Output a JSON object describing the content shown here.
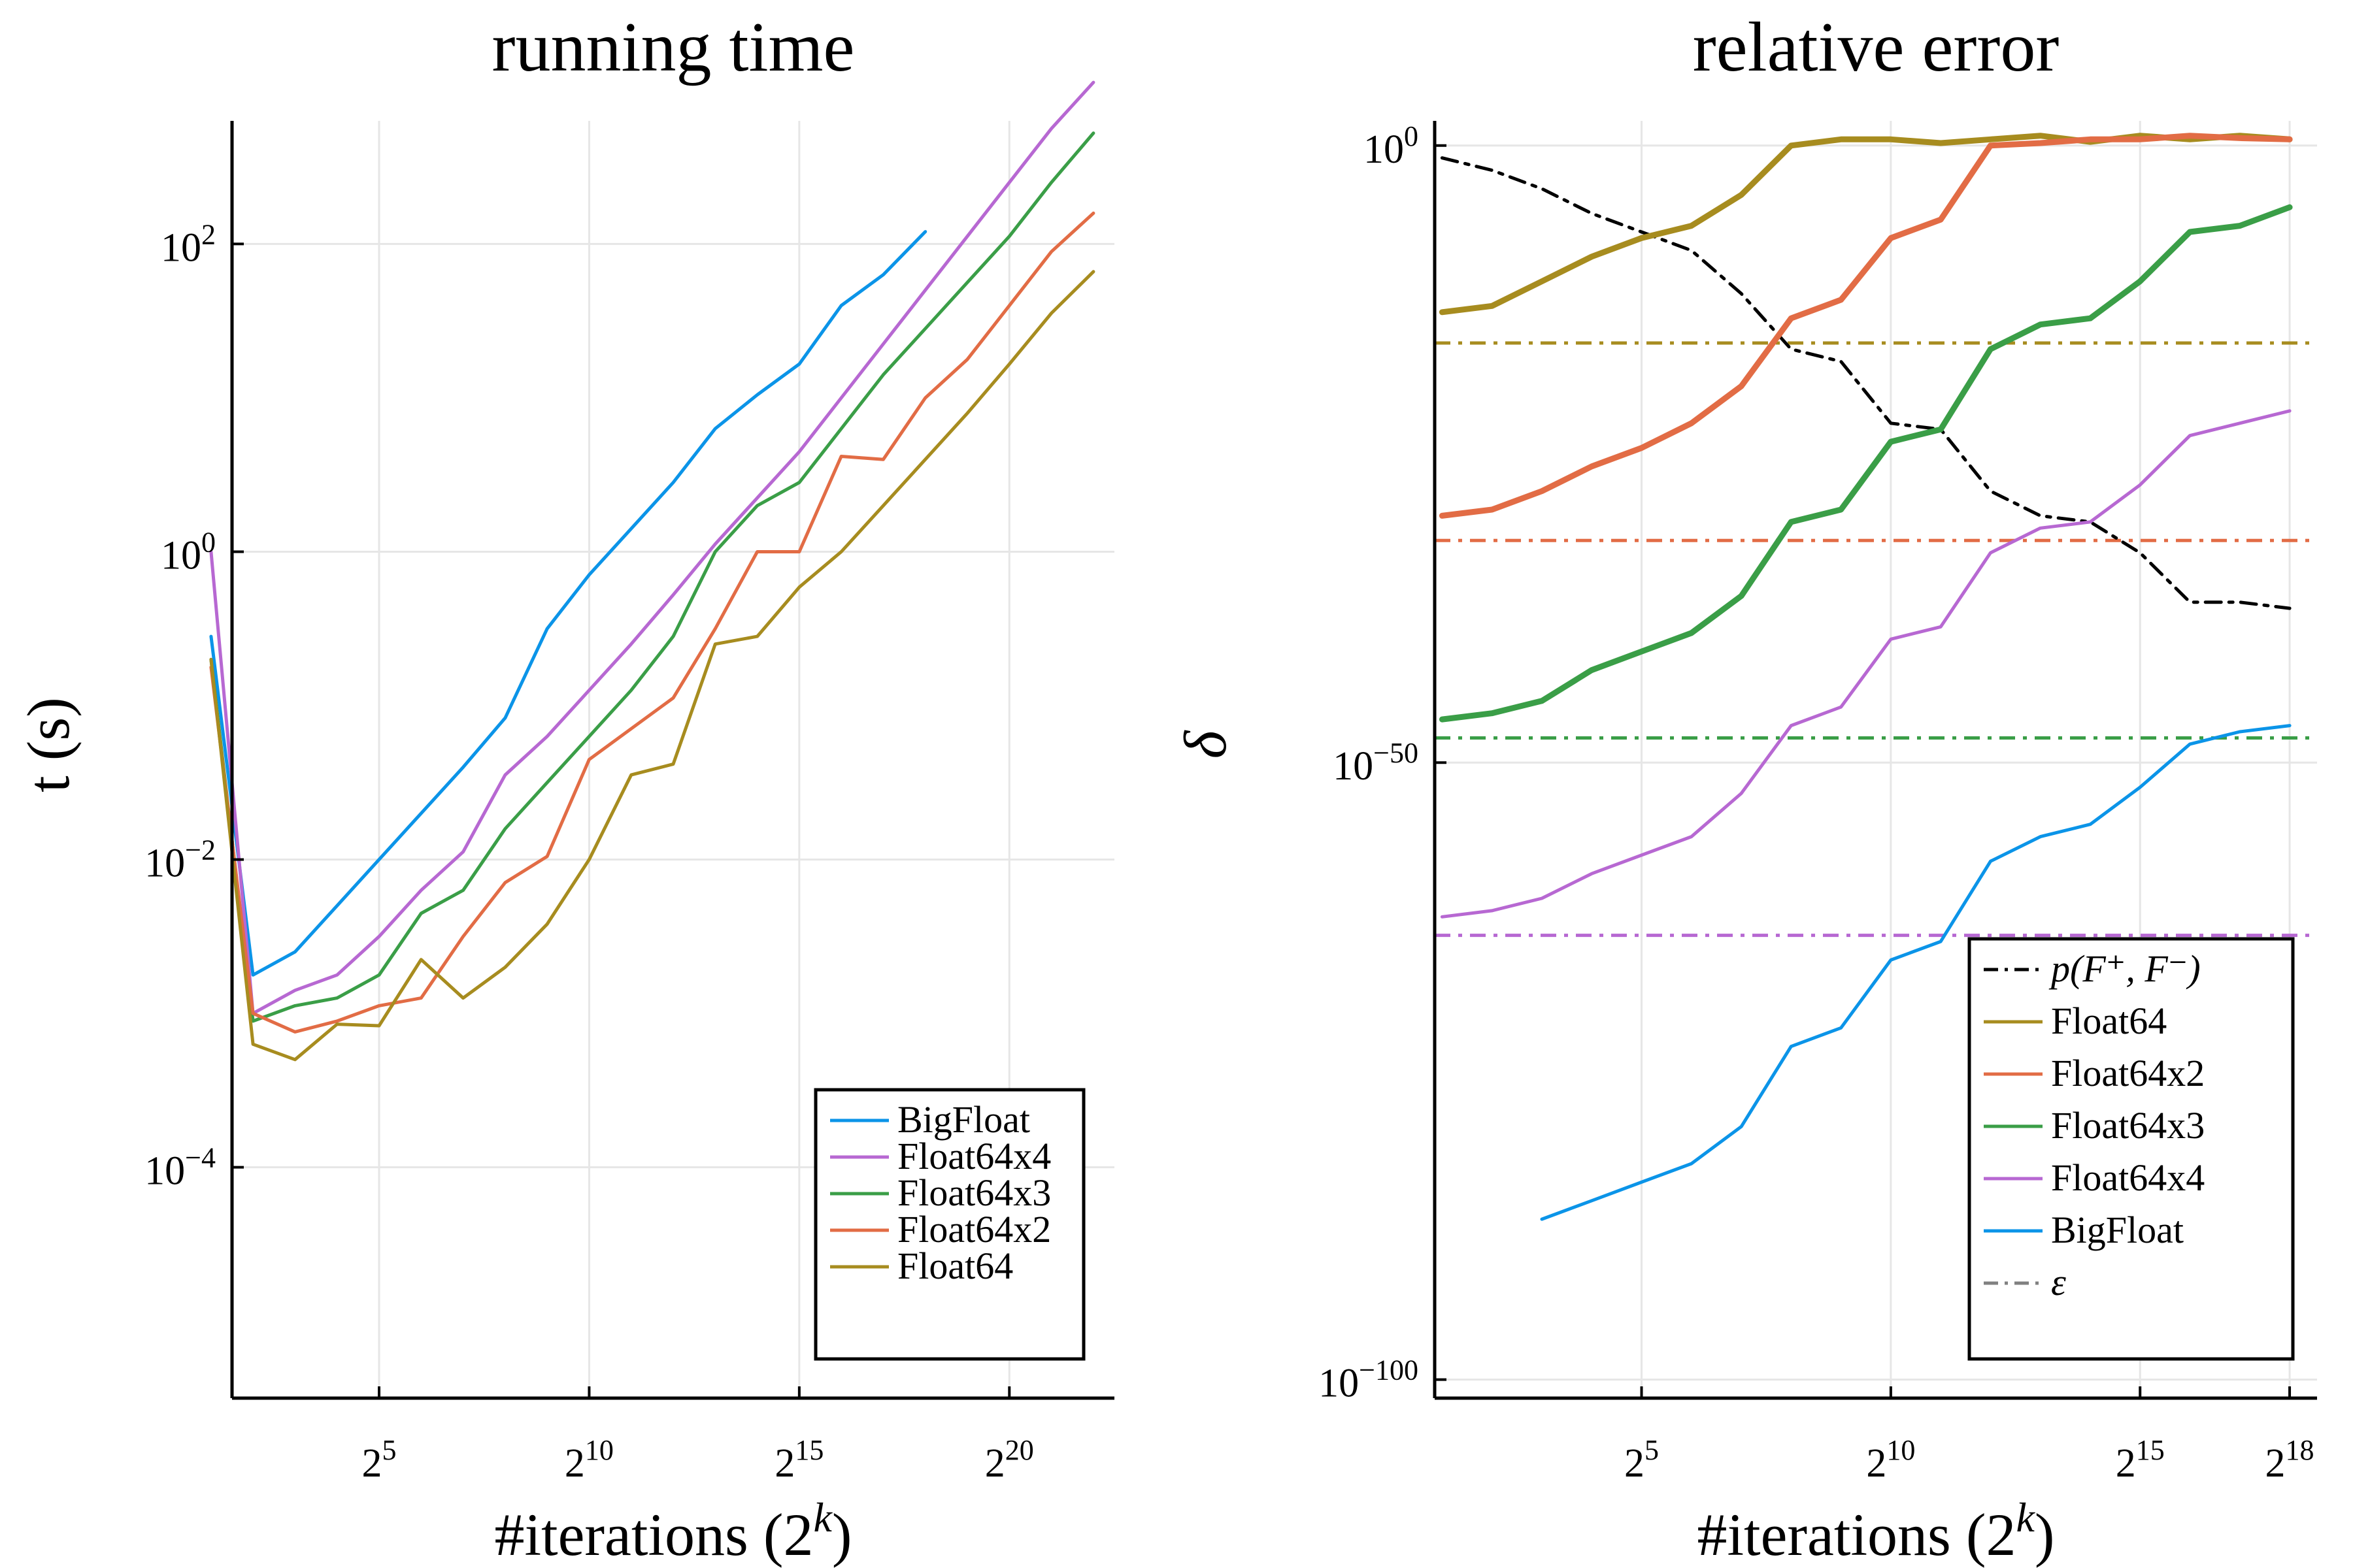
{
  "chart_data": [
    {
      "type": "line",
      "title": "running time",
      "xlabel": "#iterations (2^k)",
      "ylabel": "t (s)",
      "x_scale": "log2",
      "y_scale": "log10",
      "xlim": [
        1.5,
        22.5
      ],
      "ylim": [
        -5.5,
        2.8
      ],
      "x_ticks": [
        {
          "value": 5,
          "base": "2",
          "exp": "5"
        },
        {
          "value": 10,
          "base": "2",
          "exp": "10"
        },
        {
          "value": 15,
          "base": "2",
          "exp": "15"
        },
        {
          "value": 20,
          "base": "2",
          "exp": "20"
        }
      ],
      "y_ticks": [
        {
          "value": 2,
          "base": "10",
          "exp": "2"
        },
        {
          "value": 0,
          "base": "10",
          "exp": "0"
        },
        {
          "value": -2,
          "base": "10",
          "exp": "−2"
        },
        {
          "value": -4,
          "base": "10",
          "exp": "−4"
        }
      ],
      "grid": true,
      "legend_position": "bottom-right",
      "series": [
        {
          "name": "BigFloat",
          "color": "#0b94e8",
          "width": 5,
          "dash": "",
          "x": [
            1,
            2,
            3,
            4,
            5,
            6,
            7,
            8,
            9,
            10,
            11,
            12,
            13,
            14,
            15,
            16,
            17,
            18
          ],
          "y": [
            -0.55,
            -2.75,
            -2.6,
            -2.3,
            -2.0,
            -1.7,
            -1.4,
            -1.08,
            -0.5,
            -0.15,
            0.15,
            0.45,
            0.8,
            1.02,
            1.22,
            1.6,
            1.8,
            2.08
          ]
        },
        {
          "name": "Float64x4",
          "color": "#b768d2",
          "width": 5,
          "dash": "",
          "x": [
            1,
            2,
            3,
            4,
            5,
            6,
            7,
            8,
            9,
            10,
            11,
            12,
            13,
            14,
            15,
            16,
            17,
            18,
            19,
            20,
            21,
            22
          ],
          "y": [
            0.0,
            -3.0,
            -2.85,
            -2.75,
            -2.5,
            -2.2,
            -1.95,
            -1.45,
            -1.2,
            -0.9,
            -0.6,
            -0.28,
            0.05,
            0.35,
            0.65,
            1.0,
            1.35,
            1.7,
            2.05,
            2.4,
            2.75,
            3.05
          ]
        },
        {
          "name": "Float64x3",
          "color": "#3a9e47",
          "width": 5,
          "dash": "",
          "x": [
            1,
            2,
            3,
            4,
            5,
            6,
            7,
            8,
            9,
            10,
            11,
            12,
            13,
            14,
            15,
            16,
            17,
            18,
            19,
            20,
            21,
            22
          ],
          "y": [
            -0.7,
            -3.05,
            -2.95,
            -2.9,
            -2.75,
            -2.35,
            -2.2,
            -1.8,
            -1.5,
            -1.2,
            -0.9,
            -0.55,
            0.0,
            0.3,
            0.45,
            0.8,
            1.15,
            1.45,
            1.75,
            2.05,
            2.4,
            2.72
          ]
        },
        {
          "name": "Float64x2",
          "color": "#e26c45",
          "width": 5,
          "dash": "",
          "x": [
            1,
            2,
            3,
            4,
            5,
            6,
            7,
            8,
            9,
            10,
            11,
            12,
            13,
            14,
            15,
            16,
            17,
            18,
            19,
            20,
            21,
            22
          ],
          "y": [
            -0.75,
            -3.0,
            -3.12,
            -3.05,
            -2.95,
            -2.9,
            -2.5,
            -2.15,
            -1.98,
            -1.35,
            -1.15,
            -0.95,
            -0.5,
            0.0,
            0.0,
            0.62,
            0.6,
            1.0,
            1.25,
            1.6,
            1.95,
            2.2
          ]
        },
        {
          "name": "Float64",
          "color": "#a78c1f",
          "width": 5,
          "dash": "",
          "x": [
            1,
            2,
            3,
            4,
            5,
            6,
            7,
            8,
            9,
            10,
            11,
            12,
            13,
            14,
            15,
            16,
            17,
            18,
            19,
            20,
            21,
            22
          ],
          "y": [
            -0.7,
            -3.2,
            -3.3,
            -3.07,
            -3.08,
            -2.65,
            -2.9,
            -2.7,
            -2.42,
            -2.0,
            -1.45,
            -1.38,
            -0.6,
            -0.55,
            -0.23,
            0.0,
            0.3,
            0.6,
            0.9,
            1.22,
            1.55,
            1.82
          ]
        }
      ]
    },
    {
      "type": "line",
      "title": "relative error",
      "xlabel": "#iterations (2^k)",
      "ylabel": "δ",
      "x_scale": "log2",
      "y_scale": "log10",
      "xlim": [
        0.85,
        18.55
      ],
      "ylim": [
        -101.5,
        2.0
      ],
      "x_ticks": [
        {
          "value": 5,
          "base": "2",
          "exp": "5"
        },
        {
          "value": 10,
          "base": "2",
          "exp": "10"
        },
        {
          "value": 15,
          "base": "2",
          "exp": "15"
        },
        {
          "value": 18,
          "base": "2",
          "exp": "18"
        }
      ],
      "y_ticks": [
        {
          "value": 0,
          "base": "10",
          "exp": "0"
        },
        {
          "value": -50,
          "base": "10",
          "exp": "−50"
        },
        {
          "value": -100,
          "base": "10",
          "exp": "−100"
        }
      ],
      "grid": true,
      "legend_position": "bottom-right",
      "series": [
        {
          "name": "p(F⁺, F⁻)",
          "color": "#000000",
          "width": 5,
          "dash": "24,12,6,12",
          "x": [
            1,
            2,
            3,
            4,
            5,
            6,
            7,
            8,
            9,
            10,
            11,
            12,
            13,
            14,
            15,
            16,
            17,
            18
          ],
          "y": [
            -1,
            -2,
            -3.5,
            -5.5,
            -7,
            -8.5,
            -12,
            -16.5,
            -17.5,
            -22.5,
            -23,
            -28,
            -30,
            -30.5,
            -33,
            -37,
            -37,
            -37.5
          ]
        },
        {
          "name": "Float64",
          "color": "#a78c1f",
          "width": 9,
          "dash": "",
          "x": [
            1,
            2,
            3,
            4,
            5,
            6,
            7,
            8,
            9,
            10,
            11,
            12,
            13,
            14,
            15,
            16,
            17,
            18
          ],
          "y": [
            -13.5,
            -13,
            -11,
            -9,
            -7.5,
            -6.5,
            -4,
            0,
            0.5,
            0.5,
            0.2,
            0.5,
            0.8,
            0.3,
            0.8,
            0.5,
            0.8,
            0.5
          ]
        },
        {
          "name": "Float64x2",
          "color": "#e26c45",
          "width": 9,
          "dash": "",
          "x": [
            1,
            2,
            3,
            4,
            5,
            6,
            7,
            8,
            9,
            10,
            11,
            12,
            13,
            14,
            15,
            16,
            17,
            18
          ],
          "y": [
            -30,
            -29.5,
            -28,
            -26,
            -24.5,
            -22.5,
            -19.5,
            -14,
            -12.5,
            -7.5,
            -6,
            0,
            0.2,
            0.5,
            0.5,
            0.8,
            0.6,
            0.5
          ]
        },
        {
          "name": "Float64x3",
          "color": "#3a9e47",
          "width": 9,
          "dash": "",
          "x": [
            1,
            2,
            3,
            4,
            5,
            6,
            7,
            8,
            9,
            10,
            11,
            12,
            13,
            14,
            15,
            16,
            17,
            18
          ],
          "y": [
            -46.5,
            -46,
            -45,
            -42.5,
            -41,
            -39.5,
            -36.5,
            -30.5,
            -29.5,
            -24,
            -23,
            -16.5,
            -14.5,
            -14,
            -11,
            -7,
            -6.5,
            -5
          ]
        },
        {
          "name": "Float64x4",
          "color": "#b768d2",
          "width": 5,
          "dash": "",
          "x": [
            1,
            2,
            3,
            4,
            5,
            6,
            7,
            8,
            9,
            10,
            11,
            12,
            13,
            14,
            15,
            16,
            17,
            18
          ],
          "y": [
            -62.5,
            -62,
            -61,
            -59,
            -57.5,
            -56,
            -52.5,
            -47,
            -45.5,
            -40,
            -39,
            -33,
            -31,
            -30.5,
            -27.5,
            -23.5,
            -22.5,
            -21.5
          ]
        },
        {
          "name": "BigFloat",
          "color": "#0b94e8",
          "width": 5,
          "dash": "",
          "x": [
            3,
            4,
            5,
            6,
            7,
            8,
            9,
            10,
            11,
            12,
            13,
            14,
            15,
            16,
            17,
            18
          ],
          "y": [
            -87,
            -85.5,
            -84,
            -82.5,
            -79.5,
            -73,
            -71.5,
            -66,
            -64.5,
            -58,
            -56,
            -55,
            -52,
            -48.5,
            -47.5,
            -47
          ]
        },
        {
          "name": "ε",
          "color": "#808080",
          "width": 5,
          "dash": "24,12,6,12",
          "legend_only": true,
          "x": [],
          "y": []
        }
      ],
      "eps_lines": [
        {
          "color": "#a78c1f",
          "y": -16
        },
        {
          "color": "#e26c45",
          "y": -32
        },
        {
          "color": "#3a9e47",
          "y": -48
        },
        {
          "color": "#b768d2",
          "y": -64
        }
      ]
    }
  ]
}
